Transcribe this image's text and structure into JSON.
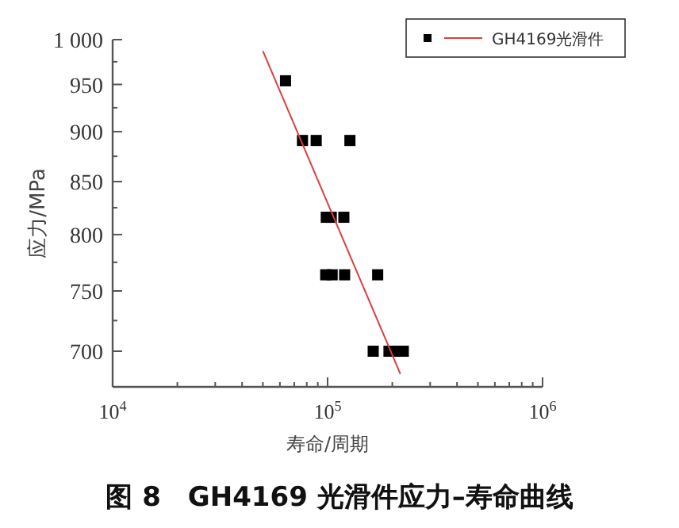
{
  "chart_data": {
    "type": "scatter",
    "title": "图 8　GH4169 光滑件应力–寿命曲线",
    "xlabel": "寿命/周期",
    "ylabel": "应力/MPa",
    "log": "xy",
    "xlim": [
      10000,
      1000000
    ],
    "ylim": [
      672,
      1000
    ],
    "xticks": [
      {
        "value": 10000,
        "label": "10$^{4}$"
      },
      {
        "value": 20000,
        "label": null
      },
      {
        "value": 30000,
        "label": null
      },
      {
        "value": 40000,
        "label": null
      },
      {
        "value": 50000,
        "label": null
      },
      {
        "value": 60000,
        "label": null
      },
      {
        "value": 70000,
        "label": null
      },
      {
        "value": 80000,
        "label": null
      },
      {
        "value": 90000,
        "label": null
      },
      {
        "value": 100000,
        "label": "10$^{5}$"
      },
      {
        "value": 200000,
        "label": null
      },
      {
        "value": 300000,
        "label": null
      },
      {
        "value": 400000,
        "label": null
      },
      {
        "value": 500000,
        "label": null
      },
      {
        "value": 600000,
        "label": null
      },
      {
        "value": 700000,
        "label": null
      },
      {
        "value": 800000,
        "label": null
      },
      {
        "value": 900000,
        "label": null
      },
      {
        "value": 1000000,
        "label": "10$^{6}$"
      }
    ],
    "yticks": [
      700,
      {
        "value": 725,
        "label": null
      },
      750,
      {
        "value": 775,
        "label": null
      },
      800,
      {
        "value": 825,
        "label": null
      },
      850,
      {
        "value": 875,
        "label": null
      },
      900,
      {
        "value": 925,
        "label": null
      },
      950,
      {
        "value": 975,
        "label": null
      },
      {
        "value": 1000,
        "label": "1 000"
      }
    ],
    "legend": "top right",
    "series": [
      {
        "name": "GH4169光滑件",
        "marker": "square",
        "color": "#000000",
        "x": [
          63700,
          76400,
          88500,
          127000,
          98600,
          104000,
          119000,
          98000,
          105000,
          120000,
          171000,
          163000,
          193000,
          212000,
          225000
        ],
        "values": [
          954,
          891,
          891,
          891,
          816,
          816,
          816,
          764,
          764,
          764,
          764,
          700,
          700,
          700,
          700
        ]
      },
      {
        "type": "line",
        "marker": "none",
        "color": "#d9403f",
        "line_style": "solid",
        "x": [
          50000,
          218000
        ],
        "values": [
          987,
          682
        ]
      }
    ]
  }
}
